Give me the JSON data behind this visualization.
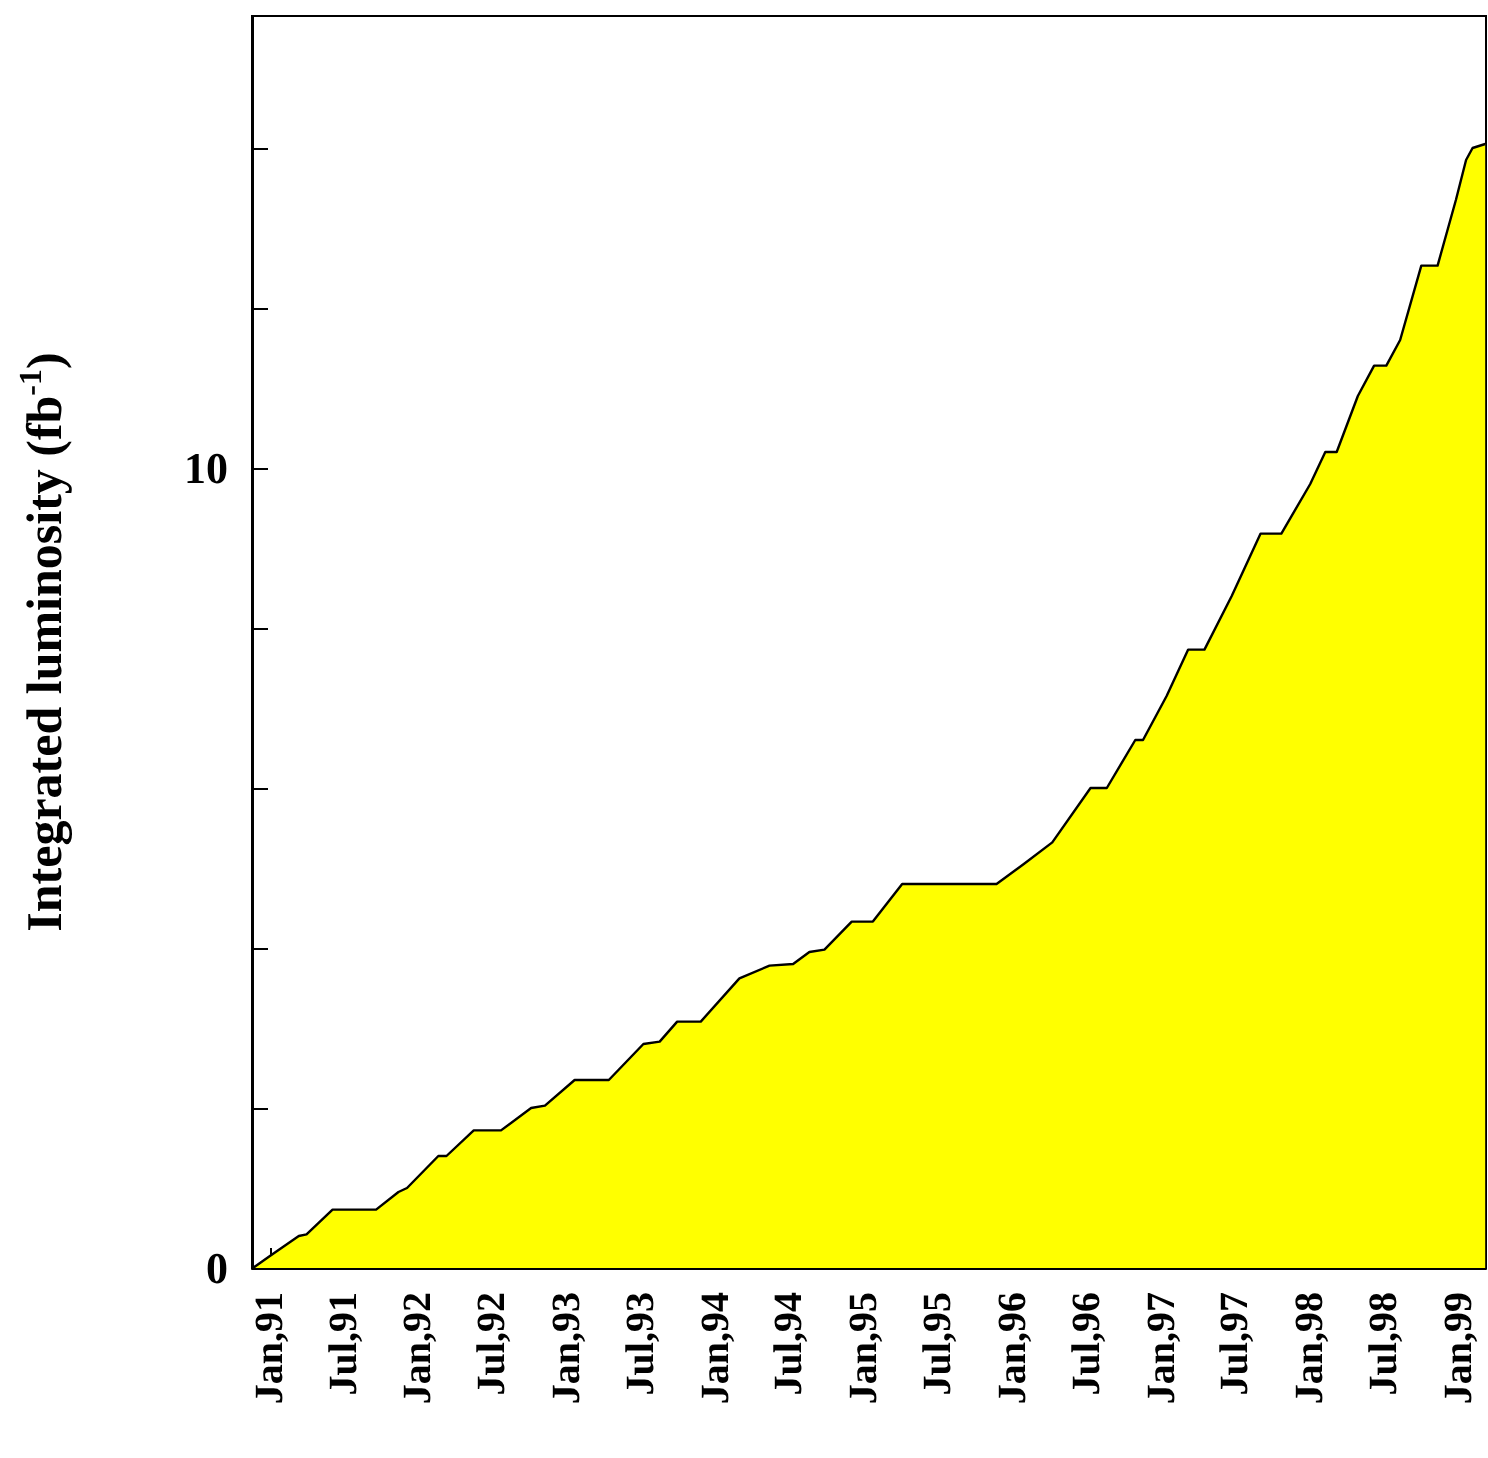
{
  "chart_data": {
    "type": "area",
    "ylabel": "Integrated luminosity (fb$^{-1}$)",
    "color": "#ffff00",
    "x": [
      "1990-11-20",
      "1991-01-01",
      "1991-03-13",
      "1991-04-01",
      "1991-06-04",
      "1991-09-19",
      "1991-11-13",
      "1991-12-04",
      "1992-02-19",
      "1992-03-10",
      "1992-05-16",
      "1992-07-22",
      "1992-10-04",
      "1992-11-07",
      "1993-01-19",
      "1993-04-13",
      "1993-07-07",
      "1993-08-16",
      "1993-09-28",
      "1993-11-25",
      "1994-02-28",
      "1994-05-13",
      "1994-07-10",
      "1994-08-19",
      "1994-09-25",
      "1994-12-01",
      "1995-01-22",
      "1995-04-04",
      "1995-11-22",
      "1996-01-28",
      "1996-04-07",
      "1996-07-10",
      "1996-08-19",
      "1996-10-28",
      "1996-11-16",
      "1997-01-13",
      "1997-03-07",
      "1997-04-16",
      "1997-06-22",
      "1997-09-01",
      "1997-10-22",
      "1998-01-01",
      "1998-02-07",
      "1998-03-07",
      "1998-04-28",
      "1998-06-07",
      "1998-07-07",
      "1998-08-10",
      "1998-10-01",
      "1998-11-10",
      "1998-12-25",
      "1999-01-19",
      "1999-02-04",
      "1999-03-07"
    ],
    "values": [
      0,
      0.15,
      0.4,
      0.42,
      0.73,
      0.73,
      0.95,
      1.0,
      1.4,
      1.4,
      1.72,
      1.72,
      2.0,
      2.03,
      2.35,
      2.35,
      2.8,
      2.83,
      3.08,
      3.08,
      3.62,
      3.78,
      3.8,
      3.95,
      3.98,
      4.33,
      4.33,
      4.8,
      4.8,
      5.05,
      5.32,
      6.0,
      6.0,
      6.6,
      6.6,
      7.15,
      7.73,
      7.73,
      8.4,
      9.18,
      9.18,
      9.8,
      10.2,
      10.2,
      10.9,
      11.28,
      11.28,
      11.6,
      12.53,
      12.53,
      13.35,
      13.85,
      14.0,
      14.05
    ],
    "xlim": [
      "1990-11-18",
      "1999-03-09"
    ],
    "xticks": [
      {
        "value": "1991-01-01",
        "label": "Jan,91"
      },
      {
        "value": "1991-07-01",
        "label": "Jul,91"
      },
      {
        "value": "1992-01-01",
        "label": "Jan,92"
      },
      {
        "value": "1992-07-01",
        "label": "Jul,92"
      },
      {
        "value": "1993-01-01",
        "label": "Jan,93"
      },
      {
        "value": "1993-07-01",
        "label": "Jul,93"
      },
      {
        "value": "1994-01-01",
        "label": "Jan,94"
      },
      {
        "value": "1994-07-01",
        "label": "Jul,94"
      },
      {
        "value": "1995-01-01",
        "label": "Jan,95"
      },
      {
        "value": "1995-07-01",
        "label": "Jul,95"
      },
      {
        "value": "1996-01-01",
        "label": "Jan,96"
      },
      {
        "value": "1996-07-01",
        "label": "Jul,96"
      },
      {
        "value": "1997-01-01",
        "label": "Jan,97"
      },
      {
        "value": "1997-07-01",
        "label": "Jul,97"
      },
      {
        "value": "1998-01-01",
        "label": "Jan,98"
      },
      {
        "value": "1998-07-01",
        "label": "Jul,98"
      },
      {
        "value": "1999-01-01",
        "label": "Jan,99"
      }
    ],
    "ylim": [
      0,
      15.65
    ],
    "yticks": [
      0,
      {
        "value": 2,
        "label": null
      },
      {
        "value": 4,
        "label": null
      },
      {
        "value": 6,
        "label": null
      },
      {
        "value": 8,
        "label": null
      },
      10,
      {
        "value": 12,
        "label": null
      },
      {
        "value": 14,
        "label": null
      }
    ],
    "grid": false,
    "marker": "none",
    "line_style": "solid"
  }
}
